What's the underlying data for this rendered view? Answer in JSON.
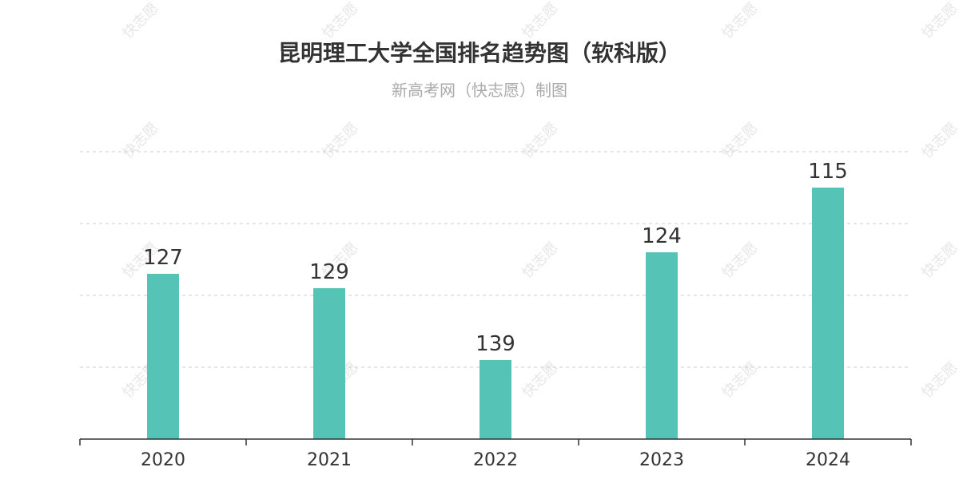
{
  "chart_data": {
    "type": "bar",
    "title": "昆明理工大学全国排名趋势图（软科版）",
    "subtitle": "新高考网（快志愿）制图",
    "categories": [
      "2020",
      "2021",
      "2022",
      "2023",
      "2024"
    ],
    "values": [
      127,
      129,
      139,
      124,
      115
    ],
    "y_inverted": true,
    "ylim": [
      110,
      150
    ],
    "grid": true,
    "bar_color": "#55c4b7",
    "watermark": "快志愿"
  }
}
